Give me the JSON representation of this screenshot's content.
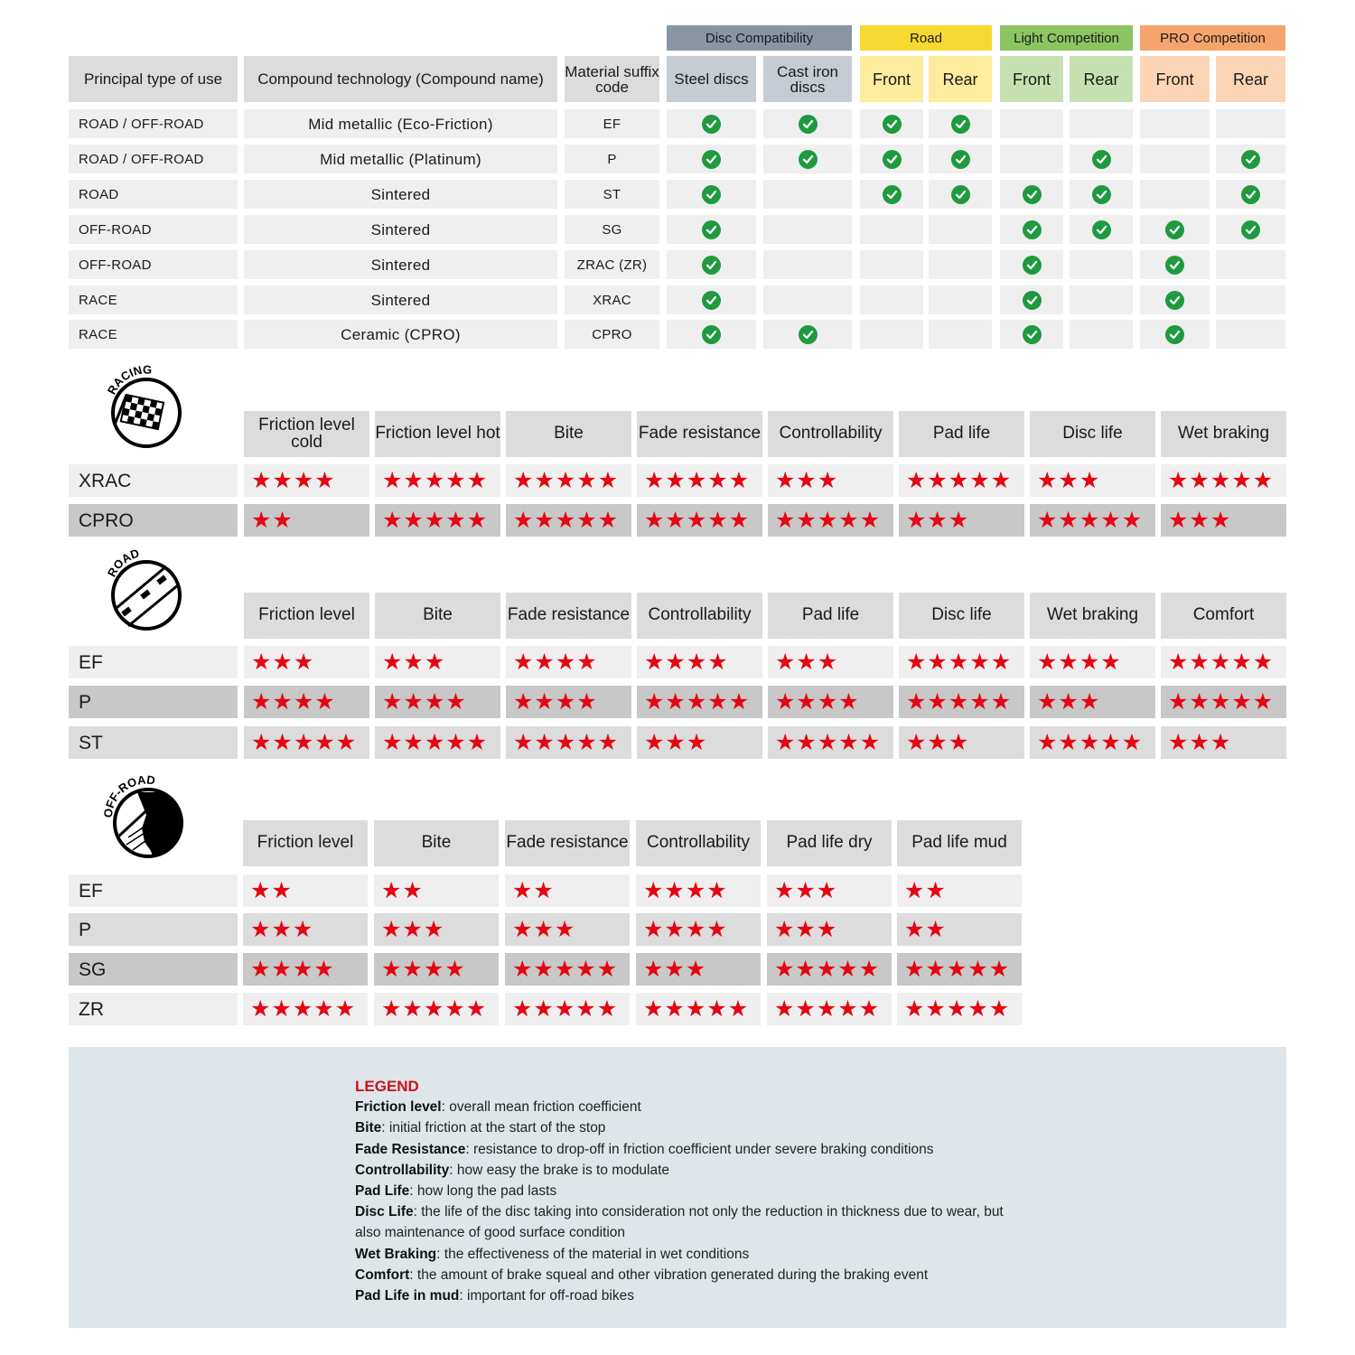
{
  "compat": {
    "groups": [
      {
        "label": "Disc Compatibility",
        "color": "#8896a4",
        "sub_color": "#c5ccd3"
      },
      {
        "label": "Road",
        "color": "#f7d931",
        "sub_color": "#fcec9c"
      },
      {
        "label": "Light Competition",
        "color": "#8cc462",
        "sub_color": "#c6e1b1"
      },
      {
        "label": "PRO Competition",
        "color": "#f5a46c",
        "sub_color": "#fbd5b6"
      }
    ],
    "headers": {
      "type": "Principal type of use",
      "compound": "Compound technology (Compound name)",
      "suffix": "Material suffix code",
      "steel": "Steel discs",
      "cast": "Cast iron discs",
      "front": "Front",
      "rear": "Rear"
    },
    "check_color": "#1f9a3f",
    "rows": [
      {
        "type": "ROAD / OFF-ROAD",
        "compound": "Mid metallic (Eco-Friction)",
        "suffix": "EF",
        "checks": [
          1,
          1,
          1,
          1,
          0,
          0,
          0,
          0
        ]
      },
      {
        "type": "ROAD / OFF-ROAD",
        "compound": "Mid metallic (Platinum)",
        "suffix": "P",
        "checks": [
          1,
          1,
          1,
          1,
          0,
          1,
          0,
          1
        ]
      },
      {
        "type": "ROAD",
        "compound": "Sintered",
        "suffix": "ST",
        "checks": [
          1,
          0,
          1,
          1,
          1,
          1,
          0,
          1
        ]
      },
      {
        "type": "OFF-ROAD",
        "compound": "Sintered",
        "suffix": "SG",
        "checks": [
          1,
          0,
          0,
          0,
          1,
          1,
          1,
          1
        ]
      },
      {
        "type": "OFF-ROAD",
        "compound": "Sintered",
        "suffix": "ZRAC (ZR)",
        "checks": [
          1,
          0,
          0,
          0,
          1,
          0,
          1,
          0
        ]
      },
      {
        "type": "RACE",
        "compound": "Sintered",
        "suffix": "XRAC",
        "checks": [
          1,
          0,
          0,
          0,
          1,
          0,
          1,
          0
        ]
      },
      {
        "type": "RACE",
        "compound": "Ceramic (CPRO)",
        "suffix": "CPRO",
        "checks": [
          1,
          1,
          0,
          0,
          1,
          0,
          1,
          0
        ]
      }
    ]
  },
  "ratings": [
    {
      "icon_label": "RACING",
      "icon": "checkered-flag-icon",
      "headers": [
        "Friction level cold",
        "Friction level hot",
        "Bite",
        "Fade resistance",
        "Controllability",
        "Pad life",
        "Disc life",
        "Wet braking"
      ],
      "rows": [
        {
          "label": "XRAC",
          "shade": "#efefef",
          "stars": [
            4,
            5,
            5,
            5,
            3,
            5,
            3,
            5
          ]
        },
        {
          "label": "CPRO",
          "shade": "#c8c8c8",
          "stars": [
            2,
            5,
            5,
            5,
            5,
            3,
            5,
            3
          ]
        }
      ]
    },
    {
      "icon_label": "ROAD",
      "icon": "road-icon",
      "headers": [
        "Friction level",
        "Bite",
        "Fade resistance",
        "Controllability",
        "Pad life",
        "Disc life",
        "Wet braking",
        "Comfort"
      ],
      "rows": [
        {
          "label": "EF",
          "shade": "#efefef",
          "stars": [
            3,
            3,
            4,
            4,
            3,
            5,
            4,
            5
          ]
        },
        {
          "label": "P",
          "shade": "#c8c8c8",
          "stars": [
            4,
            4,
            4,
            5,
            4,
            5,
            3,
            5
          ]
        },
        {
          "label": "ST",
          "shade": "#dcdcdc",
          "stars": [
            5,
            5,
            5,
            3,
            5,
            3,
            5,
            3
          ]
        }
      ]
    },
    {
      "icon_label": "OFF-ROAD",
      "icon": "off-road-icon",
      "headers": [
        "Friction level",
        "Bite",
        "Fade resistance",
        "Controllability",
        "Pad life dry",
        "Pad life mud"
      ],
      "rows": [
        {
          "label": "EF",
          "shade": "#efefef",
          "stars": [
            2,
            2,
            2,
            4,
            3,
            2
          ]
        },
        {
          "label": "P",
          "shade": "#dcdcdc",
          "stars": [
            3,
            3,
            3,
            4,
            3,
            2
          ]
        },
        {
          "label": "SG",
          "shade": "#c8c8c8",
          "stars": [
            4,
            4,
            5,
            3,
            5,
            5
          ]
        },
        {
          "label": "ZR",
          "shade": "#efefef",
          "stars": [
            5,
            5,
            5,
            5,
            5,
            5
          ]
        }
      ]
    }
  ],
  "star_color": "#e30613",
  "legend": {
    "title": "LEGEND",
    "items": [
      {
        "term": "Friction level",
        "desc": "overall mean friction coefficient"
      },
      {
        "term": "Bite",
        "desc": "initial friction at the start of the stop"
      },
      {
        "term": "Fade Resistance",
        "desc": "resistance to drop-off in friction coefficient under severe braking conditions"
      },
      {
        "term": "Controllability",
        "desc": "how easy the brake is to modulate"
      },
      {
        "term": "Pad Life",
        "desc": "how long the pad lasts"
      },
      {
        "term": "Disc Life",
        "desc": "the life of the disc taking into consideration not only the reduction in thickness due to wear, but also maintenance of good surface condition"
      },
      {
        "term": "Wet Braking",
        "desc": "the effectiveness of the material in wet conditions"
      },
      {
        "term": "Comfort",
        "desc": "the amount of brake squeal and other vibration generated during the braking event"
      },
      {
        "term": "Pad Life in mud",
        "desc": "important for off-road bikes"
      }
    ]
  }
}
